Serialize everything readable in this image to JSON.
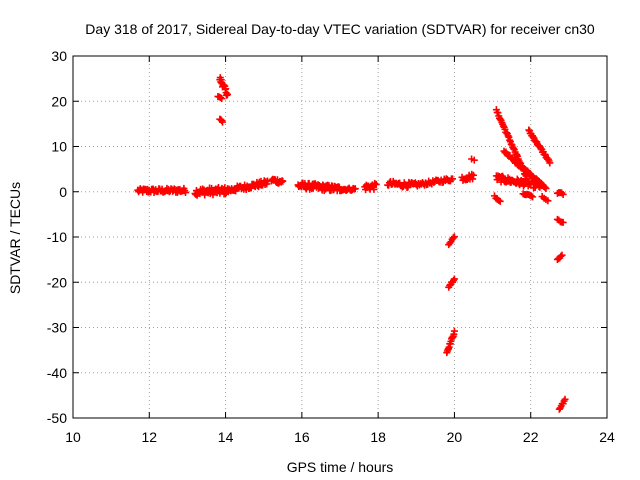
{
  "chart_data": {
    "type": "scatter",
    "title": "Day 318 of 2017, Sidereal Day-to-day VTEC variation (SDTVAR) for receiver cn30",
    "xlabel": "GPS time / hours",
    "ylabel": "SDTVAR / TECUs",
    "xlim": [
      10,
      24
    ],
    "ylim": [
      -50,
      30
    ],
    "xticks": [
      10,
      12,
      14,
      16,
      18,
      20,
      22,
      24
    ],
    "yticks": [
      30,
      20,
      10,
      0,
      -10,
      -20,
      -30,
      -40,
      -50
    ],
    "grid": true,
    "marker": "+",
    "colors": {
      "points": "#ff0000",
      "grid": "#a0a0a0",
      "axes": "#000000"
    },
    "series": [
      {
        "name": "SDTVAR",
        "segments": [
          {
            "x0": 11.7,
            "x1": 12.95,
            "y0": 0.2,
            "y1": 0.3,
            "spread": 1.0,
            "n": 60
          },
          {
            "x0": 13.2,
            "x1": 14.05,
            "y0": 0.0,
            "y1": 0.2,
            "spread": 1.6,
            "n": 48
          },
          {
            "x0": 13.85,
            "x1": 14.05,
            "y0": 25.0,
            "y1": 21.5,
            "spread": 1.2,
            "n": 18
          },
          {
            "x0": 13.8,
            "x1": 13.9,
            "y0": 21.0,
            "y1": 20.6,
            "spread": 0.4,
            "n": 4
          },
          {
            "x0": 13.85,
            "x1": 13.92,
            "y0": 16.0,
            "y1": 15.5,
            "spread": 0.3,
            "n": 4
          },
          {
            "x0": 14.05,
            "x1": 15.1,
            "y0": 0.3,
            "y1": 2.0,
            "spread": 1.2,
            "n": 50
          },
          {
            "x0": 15.2,
            "x1": 15.5,
            "y0": 2.6,
            "y1": 2.2,
            "spread": 1.0,
            "n": 16
          },
          {
            "x0": 15.9,
            "x1": 17.0,
            "y0": 1.4,
            "y1": 0.6,
            "spread": 1.4,
            "n": 62
          },
          {
            "x0": 17.0,
            "x1": 17.4,
            "y0": 0.5,
            "y1": 0.6,
            "spread": 0.6,
            "n": 16
          },
          {
            "x0": 17.65,
            "x1": 17.95,
            "y0": 1.0,
            "y1": 1.2,
            "spread": 1.4,
            "n": 16
          },
          {
            "x0": 18.25,
            "x1": 19.0,
            "y0": 1.8,
            "y1": 1.4,
            "spread": 1.2,
            "n": 32
          },
          {
            "x0": 19.0,
            "x1": 19.95,
            "y0": 1.5,
            "y1": 2.8,
            "spread": 0.8,
            "n": 36
          },
          {
            "x0": 20.2,
            "x1": 20.5,
            "y0": 3.0,
            "y1": 3.4,
            "spread": 1.2,
            "n": 14
          },
          {
            "x0": 20.45,
            "x1": 20.52,
            "y0": 7.2,
            "y1": 7.0,
            "spread": 0.2,
            "n": 2
          },
          {
            "x0": 19.85,
            "x1": 20.0,
            "y0": -11.5,
            "y1": -10.0,
            "spread": 0.4,
            "n": 6
          },
          {
            "x0": 19.85,
            "x1": 20.0,
            "y0": -21.0,
            "y1": -19.2,
            "spread": 0.4,
            "n": 7
          },
          {
            "x0": 19.8,
            "x1": 20.0,
            "y0": -35.5,
            "y1": -31.0,
            "spread": 0.5,
            "n": 14
          },
          {
            "x0": 21.1,
            "x1": 21.9,
            "y0": 18.0,
            "y1": 3.0,
            "spread": 0.5,
            "n": 40
          },
          {
            "x0": 21.3,
            "x1": 22.3,
            "y0": 9.0,
            "y1": 1.5,
            "spread": 0.5,
            "n": 40
          },
          {
            "x0": 21.6,
            "x1": 22.4,
            "y0": 6.5,
            "y1": 0.8,
            "spread": 0.4,
            "n": 32
          },
          {
            "x0": 21.95,
            "x1": 22.5,
            "y0": 13.5,
            "y1": 6.5,
            "spread": 0.5,
            "n": 30
          },
          {
            "x0": 21.1,
            "x1": 22.3,
            "y0": 3.0,
            "y1": 1.2,
            "spread": 1.4,
            "n": 60
          },
          {
            "x0": 21.05,
            "x1": 21.2,
            "y0": -1.0,
            "y1": -2.3,
            "spread": 0.4,
            "n": 5
          },
          {
            "x0": 21.8,
            "x1": 22.05,
            "y0": -0.5,
            "y1": -1.0,
            "spread": 0.4,
            "n": 8
          },
          {
            "x0": 22.3,
            "x1": 22.45,
            "y0": -1.2,
            "y1": -2.0,
            "spread": 0.3,
            "n": 4
          },
          {
            "x0": 22.7,
            "x1": 22.85,
            "y0": -0.2,
            "y1": -0.5,
            "spread": 0.4,
            "n": 5
          },
          {
            "x0": 22.7,
            "x1": 22.85,
            "y0": -6.2,
            "y1": -6.8,
            "spread": 0.3,
            "n": 5
          },
          {
            "x0": 22.7,
            "x1": 22.82,
            "y0": -15.0,
            "y1": -14.0,
            "spread": 0.3,
            "n": 5
          },
          {
            "x0": 22.75,
            "x1": 22.9,
            "y0": -48.0,
            "y1": -46.0,
            "spread": 0.4,
            "n": 7
          }
        ]
      }
    ]
  }
}
